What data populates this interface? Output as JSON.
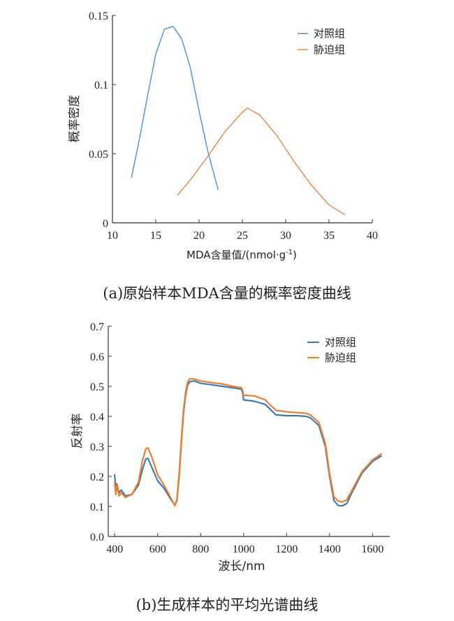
{
  "colors": {
    "control": "#3a7ab6",
    "stress": "#ee7d2a",
    "stress_light": "#e0854a",
    "control_light": "#4a90c8"
  },
  "chart_data": [
    {
      "type": "line",
      "ylabel": "概率密度",
      "xlabel": "MDA含量值/(nmol·g",
      "xlabel_sup": "-1",
      "xlabel_tail": ")",
      "xlim": [
        10,
        40
      ],
      "ylim": [
        0,
        0.15
      ],
      "xticks": [
        10,
        15,
        20,
        25,
        30,
        35,
        40
      ],
      "yticks": [
        0,
        0.05,
        0.1,
        0.15
      ],
      "ytick_labels": [
        "0",
        "0.05",
        "0.1",
        "0.15"
      ],
      "legend_position": "top-right",
      "grid": false,
      "series": [
        {
          "name": "对照组",
          "color": "#4a90c8",
          "x": [
            12.2,
            13,
            14,
            15,
            16,
            17,
            18,
            19,
            20,
            21,
            22.2
          ],
          "y": [
            0.033,
            0.057,
            0.09,
            0.122,
            0.14,
            0.142,
            0.133,
            0.112,
            0.081,
            0.052,
            0.024
          ]
        },
        {
          "name": "胁迫组",
          "color": "#e0854a",
          "x": [
            17.5,
            19,
            21,
            23,
            25,
            25.6,
            27,
            29,
            31,
            33,
            35,
            36.8
          ],
          "y": [
            0.02,
            0.031,
            0.048,
            0.066,
            0.08,
            0.083,
            0.078,
            0.063,
            0.044,
            0.027,
            0.013,
            0.006
          ]
        }
      ]
    },
    {
      "type": "line",
      "ylabel": "反射率",
      "xlabel": "波长/nm",
      "xlim": [
        370,
        1680
      ],
      "ylim": [
        0,
        0.7
      ],
      "xticks": [
        400,
        600,
        800,
        1000,
        1200,
        1400,
        1600
      ],
      "yticks": [
        0,
        0.1,
        0.2,
        0.3,
        0.4,
        0.5,
        0.6,
        0.7
      ],
      "ytick_labels": [
        "0.0",
        "0.1",
        "0.2",
        "0.3",
        "0.4",
        "0.5",
        "0.6",
        "0.7"
      ],
      "legend_position": "top-right",
      "grid": false,
      "series": [
        {
          "name": "对照组",
          "color": "#3a7ab6",
          "x": [
            400,
            405,
            410,
            420,
            430,
            450,
            480,
            510,
            530,
            545,
            555,
            570,
            600,
            630,
            660,
            680,
            690,
            700,
            710,
            720,
            730,
            740,
            750,
            770,
            800,
            850,
            900,
            950,
            990,
            995,
            1000,
            1050,
            1100,
            1150,
            1200,
            1250,
            1290,
            1310,
            1350,
            1380,
            1400,
            1420,
            1440,
            1460,
            1480,
            1500,
            1550,
            1600,
            1640
          ],
          "y": [
            0.205,
            0.16,
            0.175,
            0.145,
            0.155,
            0.135,
            0.14,
            0.17,
            0.225,
            0.258,
            0.26,
            0.235,
            0.185,
            0.16,
            0.125,
            0.105,
            0.12,
            0.2,
            0.31,
            0.41,
            0.47,
            0.505,
            0.515,
            0.518,
            0.51,
            0.505,
            0.5,
            0.495,
            0.49,
            0.48,
            0.455,
            0.45,
            0.44,
            0.405,
            0.402,
            0.402,
            0.4,
            0.395,
            0.37,
            0.3,
            0.2,
            0.12,
            0.103,
            0.102,
            0.11,
            0.14,
            0.21,
            0.25,
            0.268
          ]
        },
        {
          "name": "胁迫组",
          "color": "#ee7d2a",
          "x": [
            400,
            405,
            410,
            420,
            430,
            450,
            480,
            510,
            530,
            545,
            555,
            570,
            600,
            630,
            660,
            680,
            690,
            700,
            710,
            720,
            730,
            740,
            750,
            770,
            800,
            850,
            900,
            950,
            990,
            995,
            1000,
            1050,
            1100,
            1150,
            1200,
            1250,
            1290,
            1310,
            1350,
            1380,
            1400,
            1420,
            1440,
            1460,
            1480,
            1500,
            1550,
            1600,
            1640
          ],
          "y": [
            0.18,
            0.14,
            0.17,
            0.135,
            0.145,
            0.13,
            0.14,
            0.18,
            0.255,
            0.292,
            0.295,
            0.27,
            0.205,
            0.17,
            0.13,
            0.102,
            0.125,
            0.21,
            0.32,
            0.42,
            0.48,
            0.515,
            0.525,
            0.524,
            0.518,
            0.512,
            0.508,
            0.5,
            0.495,
            0.488,
            0.47,
            0.468,
            0.455,
            0.42,
            0.415,
            0.412,
            0.41,
            0.405,
            0.38,
            0.31,
            0.21,
            0.132,
            0.118,
            0.115,
            0.122,
            0.148,
            0.215,
            0.255,
            0.275
          ]
        }
      ]
    }
  ],
  "captions": {
    "a": "(a)原始样本MDA含量的概率密度曲线",
    "b": "(b)生成样本的平均光谱曲线"
  }
}
